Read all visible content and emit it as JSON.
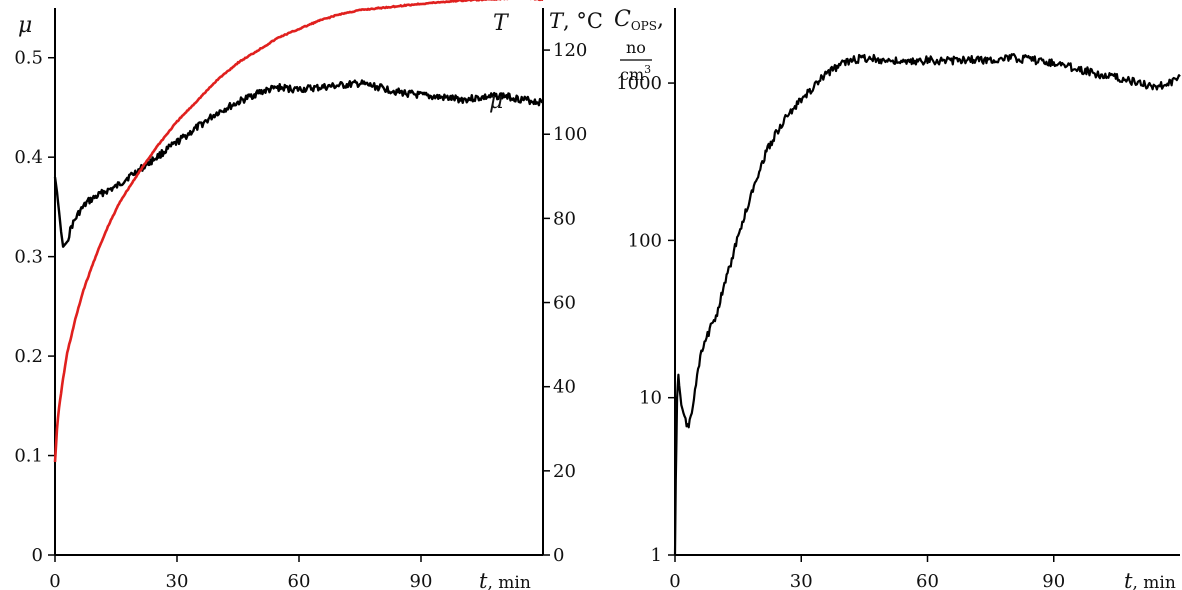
{
  "chart_data": [
    {
      "type": "line",
      "title": "",
      "xlabel": {
        "symbol": "t",
        "unit": ", min"
      },
      "ylabel_left": "μ",
      "ylabel_right": {
        "symbol": "T",
        "unit": ", °C"
      },
      "xlim": [
        0,
        120
      ],
      "ylim_left": [
        0,
        0.55
      ],
      "ylim_right": [
        0,
        130
      ],
      "x_ticks": [
        "0",
        "30",
        "60",
        "90"
      ],
      "y_ticks_left": [
        "0",
        "0.1",
        "0.2",
        "0.3",
        "0.4",
        "0.5"
      ],
      "y_ticks_right": [
        "0",
        "20",
        "40",
        "60",
        "80",
        "100",
        "120"
      ],
      "grid": false,
      "series": [
        {
          "name": "μ",
          "axis": "left",
          "color": "#000000",
          "x": [
            0,
            0.5,
            1,
            1.5,
            2,
            3,
            4,
            6,
            8,
            10,
            12,
            15,
            18,
            20,
            25,
            30,
            35,
            40,
            45,
            50,
            55,
            60,
            65,
            70,
            75,
            80,
            85,
            90,
            95,
            100,
            105,
            110,
            115,
            120
          ],
          "values": [
            0.38,
            0.365,
            0.345,
            0.325,
            0.31,
            0.315,
            0.33,
            0.345,
            0.355,
            0.36,
            0.365,
            0.37,
            0.38,
            0.385,
            0.4,
            0.415,
            0.43,
            0.445,
            0.455,
            0.465,
            0.47,
            0.468,
            0.47,
            0.472,
            0.474,
            0.47,
            0.465,
            0.462,
            0.46,
            0.458,
            0.46,
            0.462,
            0.458,
            0.455
          ]
        },
        {
          "name": "T",
          "axis": "right",
          "color": "#e0201e",
          "x": [
            0,
            0.5,
            1,
            2,
            3,
            5,
            7,
            10,
            13,
            16,
            20,
            25,
            30,
            35,
            40,
            45,
            50,
            55,
            60,
            65,
            70,
            75,
            80,
            90,
            100,
            110,
            115,
            120
          ],
          "values": [
            22,
            30,
            35,
            42,
            48,
            56,
            63,
            71,
            78,
            84,
            90,
            97,
            103,
            108,
            113,
            117,
            120,
            123,
            125,
            127,
            128.5,
            129.5,
            130,
            131,
            131.8,
            132.2,
            132.5,
            132
          ]
        }
      ]
    },
    {
      "type": "line",
      "title": "",
      "xlabel": {
        "symbol": "t",
        "unit": ", min"
      },
      "ylabel": {
        "symbol": "C",
        "subscript": "OPS",
        "comma": ",",
        "unit_num": "no",
        "unit_den": "cm",
        "unit_den_exp": "3"
      },
      "scale_y": "log",
      "xlim": [
        0,
        120
      ],
      "ylim": [
        1,
        3000
      ],
      "x_ticks": [
        "0",
        "30",
        "60",
        "90"
      ],
      "y_ticks": [
        "1",
        "10",
        "100",
        "1000"
      ],
      "grid": false,
      "series": [
        {
          "name": "",
          "color": "#000000",
          "x": [
            0,
            0.2,
            0.5,
            0.8,
            1,
            1.5,
            2,
            2.5,
            3,
            4,
            5,
            6,
            7,
            8,
            10,
            12,
            14,
            16,
            18,
            20,
            22,
            24,
            26,
            28,
            30,
            33,
            36,
            40,
            45,
            50,
            55,
            60,
            65,
            70,
            75,
            80,
            85,
            90,
            95,
            100,
            105,
            110,
            115,
            118,
            120
          ],
          "values": [
            1,
            3,
            10,
            14,
            12,
            9,
            8,
            7,
            6.5,
            8,
            12,
            18,
            22,
            26,
            35,
            55,
            85,
            130,
            190,
            280,
            380,
            480,
            580,
            680,
            780,
            950,
            1150,
            1350,
            1450,
            1400,
            1350,
            1400,
            1380,
            1420,
            1400,
            1450,
            1400,
            1350,
            1250,
            1150,
            1080,
            1000,
            950,
            1000,
            1100
          ]
        }
      ]
    }
  ]
}
